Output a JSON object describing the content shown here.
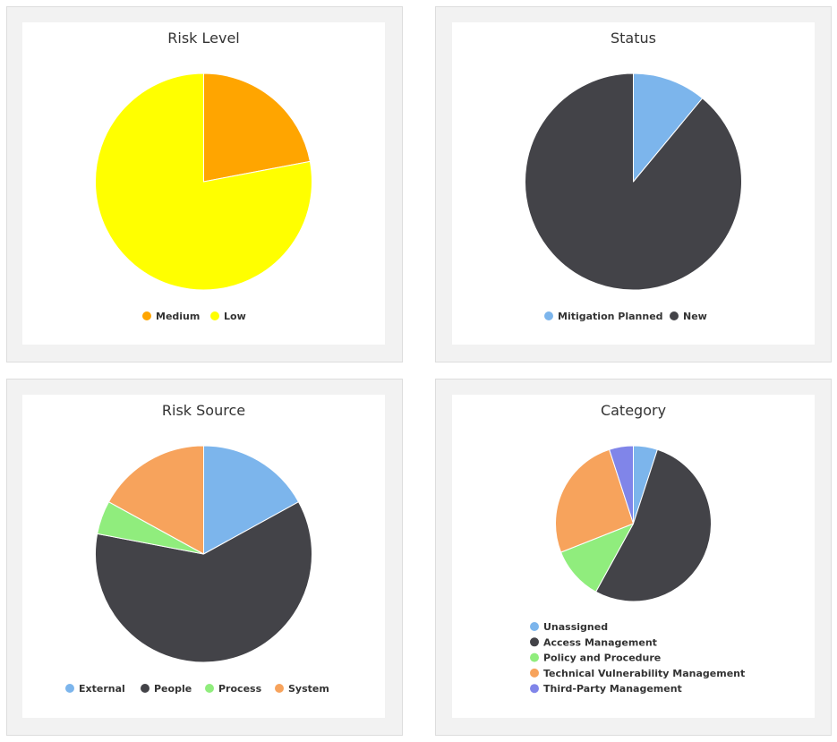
{
  "chart_data": [
    {
      "type": "pie",
      "title": "Risk Level",
      "categories": [
        "Medium",
        "Low"
      ],
      "values": [
        22,
        78
      ],
      "colors": [
        "#ffa500",
        "#ffff00"
      ],
      "legend": "bottom-center"
    },
    {
      "type": "pie",
      "title": "Status",
      "categories": [
        "Mitigation Planned",
        "New"
      ],
      "values": [
        11,
        89
      ],
      "colors": [
        "#7cb5ec",
        "#434348"
      ],
      "legend": "bottom-center"
    },
    {
      "type": "pie",
      "title": "Risk Source",
      "categories": [
        "External",
        "People",
        "Process",
        "System"
      ],
      "values": [
        17,
        61,
        5,
        17
      ],
      "colors": [
        "#7cb5ec",
        "#434348",
        "#90ed7d",
        "#f7a35c"
      ],
      "legend": "bottom-center"
    },
    {
      "type": "pie",
      "title": "Category",
      "categories": [
        "Unassigned",
        "Access Management",
        "Policy and Procedure",
        "Technical Vulnerability Management",
        "Third-Party Management"
      ],
      "values": [
        5,
        53,
        11,
        26,
        5
      ],
      "colors": [
        "#7cb5ec",
        "#434348",
        "#90ed7d",
        "#f7a35c",
        "#8085e9"
      ],
      "legend": "bottom-vertical"
    }
  ]
}
